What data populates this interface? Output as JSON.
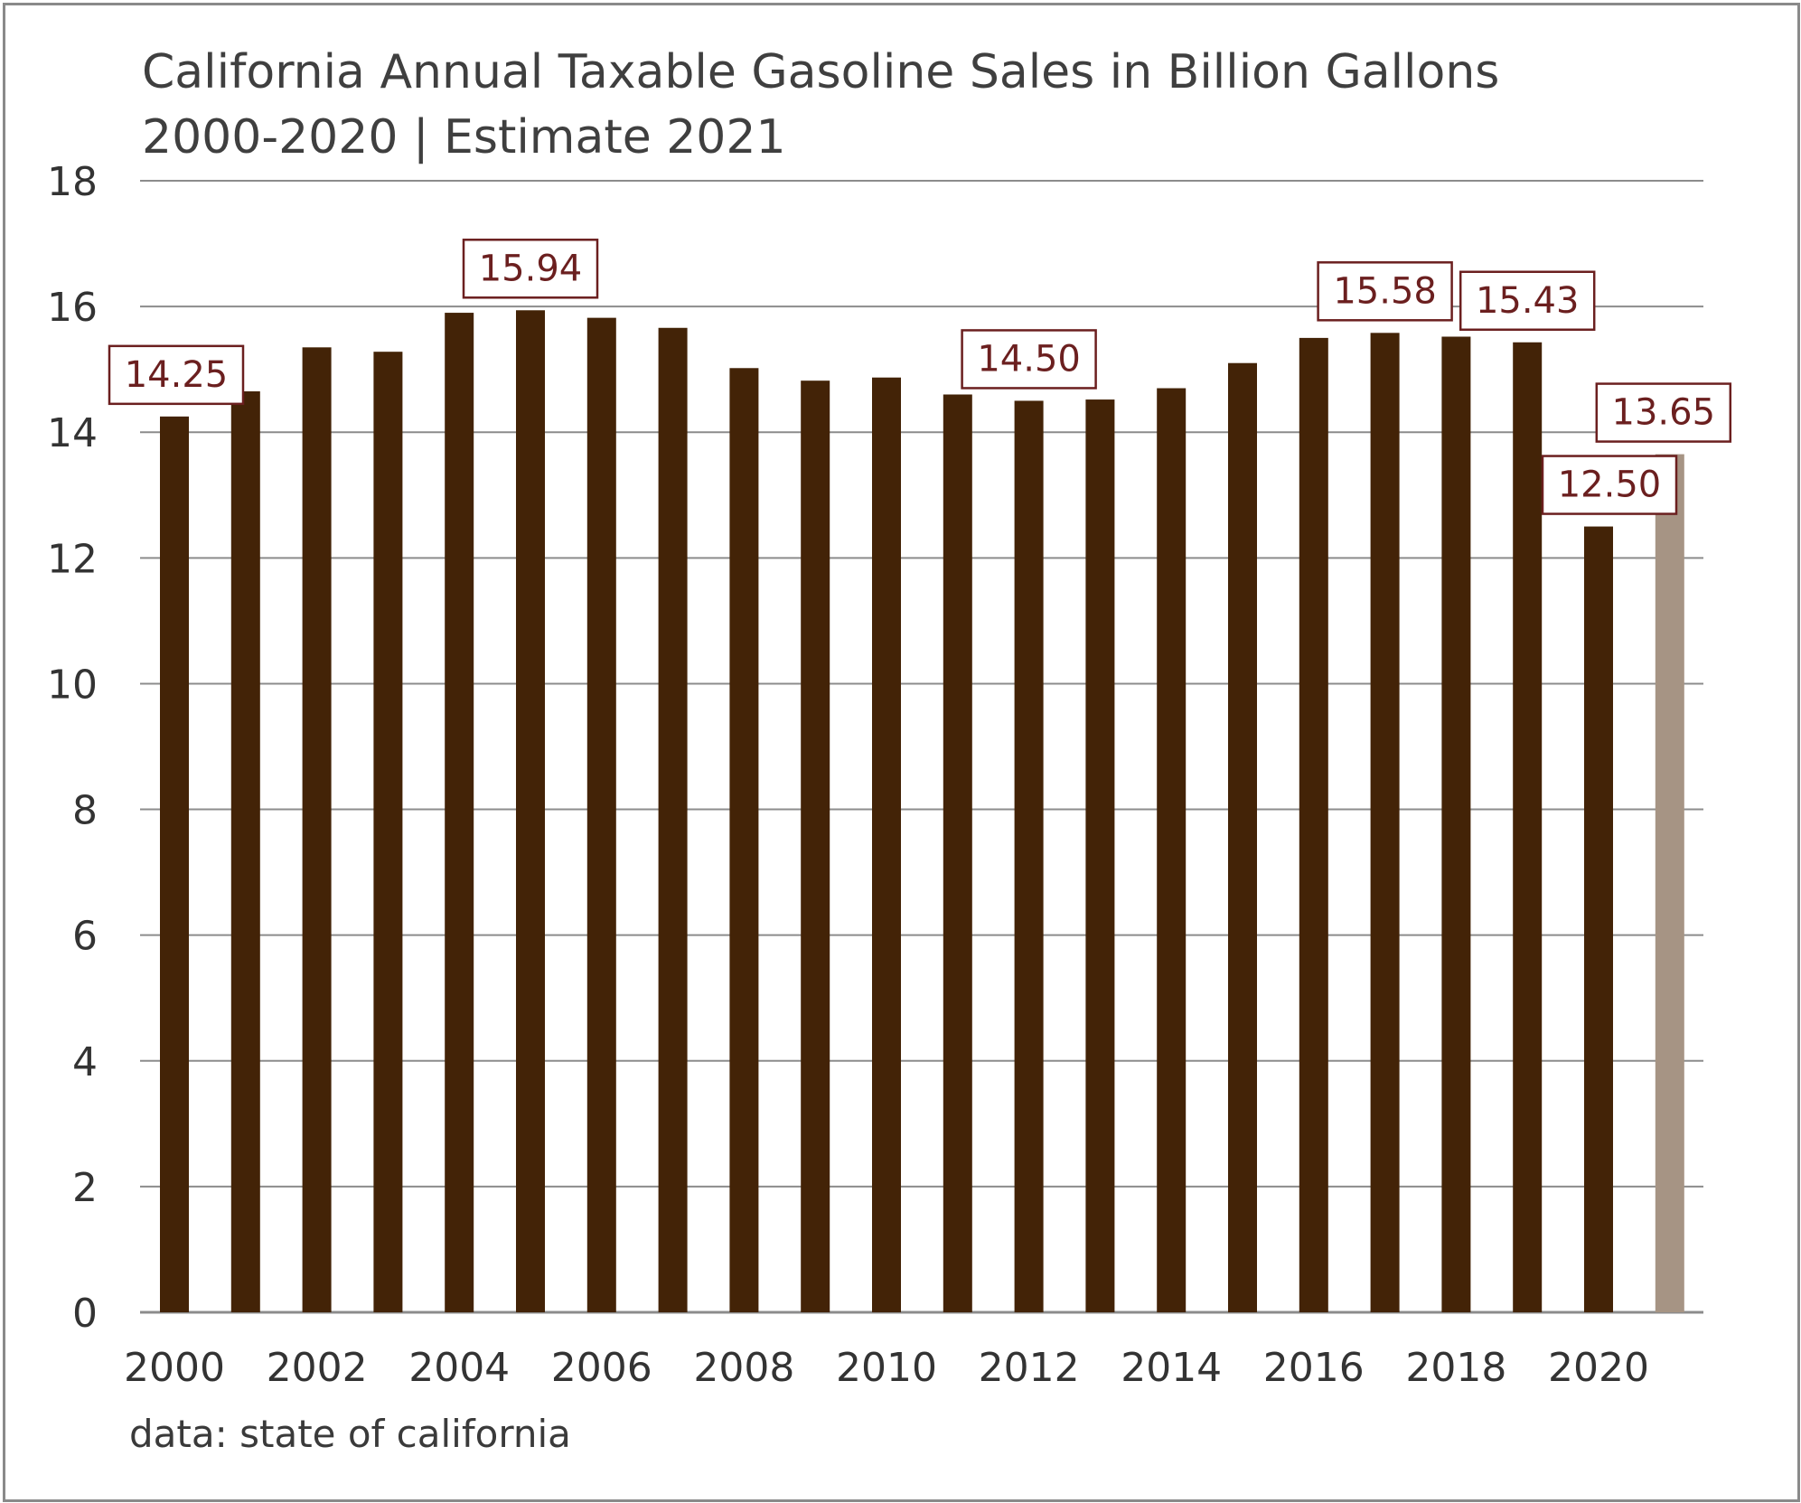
{
  "chart_data": {
    "type": "bar",
    "title": "California Annual Taxable Gasoline Sales in Billion Gallons",
    "subtitle": "2000-2020 | Estimate 2021",
    "source": "data: state of california",
    "xlabel": "",
    "ylabel": "",
    "ylim": [
      0,
      18
    ],
    "yticks": [
      "0",
      "2",
      "4",
      "6",
      "8",
      "10",
      "12",
      "14",
      "16",
      "18"
    ],
    "xtick_labels": [
      "2000",
      "2002",
      "2004",
      "2006",
      "2008",
      "2010",
      "2012",
      "2014",
      "2016",
      "2018",
      "2020"
    ],
    "grid": true,
    "categories": [
      "2000",
      "2001",
      "2002",
      "2003",
      "2004",
      "2005",
      "2006",
      "2007",
      "2008",
      "2009",
      "2010",
      "2011",
      "2012",
      "2013",
      "2014",
      "2015",
      "2016",
      "2017",
      "2018",
      "2019",
      "2020",
      "2021"
    ],
    "values": [
      14.25,
      14.65,
      15.35,
      15.28,
      15.9,
      15.94,
      15.82,
      15.66,
      15.02,
      14.82,
      14.87,
      14.6,
      14.5,
      14.52,
      14.7,
      15.1,
      15.5,
      15.58,
      15.52,
      15.43,
      12.5,
      13.65
    ],
    "estimate": [
      false,
      false,
      false,
      false,
      false,
      false,
      false,
      false,
      false,
      false,
      false,
      false,
      false,
      false,
      false,
      false,
      false,
      false,
      false,
      false,
      false,
      true
    ],
    "data_labels": [
      {
        "category": "2000",
        "text": "14.25"
      },
      {
        "category": "2005",
        "text": "15.94"
      },
      {
        "category": "2012",
        "text": "14.50"
      },
      {
        "category": "2017",
        "text": "15.58"
      },
      {
        "category": "2019",
        "text": "15.43"
      },
      {
        "category": "2020",
        "text": "12.50"
      },
      {
        "category": "2021",
        "text": "13.65"
      }
    ],
    "colors": {
      "bar": "#432307",
      "estimate_bar": "#a69484",
      "label_text": "#6b1f1f",
      "label_border": "#6b1f1f",
      "grid": "#8c8c8c"
    }
  }
}
